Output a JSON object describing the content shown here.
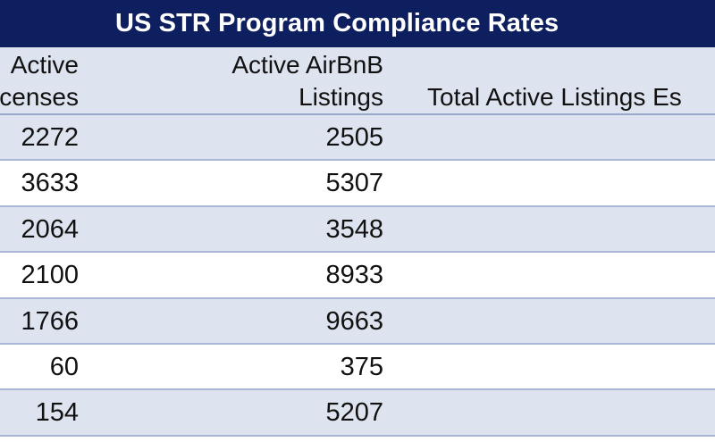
{
  "table": {
    "title": "US STR Program Compliance Rates",
    "headers": {
      "col1_line1": "Active",
      "col1_line2": "censes",
      "col2_line1": "Active AirBnB",
      "col2_line2": "Listings",
      "col3_line1": "Total Active Listings Es"
    },
    "rows": [
      {
        "active_licenses": "2272",
        "active_airbnb_listings": "2505"
      },
      {
        "active_licenses": "3633",
        "active_airbnb_listings": "5307"
      },
      {
        "active_licenses": "2064",
        "active_airbnb_listings": "3548"
      },
      {
        "active_licenses": "2100",
        "active_airbnb_listings": "8933"
      },
      {
        "active_licenses": "1766",
        "active_airbnb_listings": "9663"
      },
      {
        "active_licenses": "60",
        "active_airbnb_listings": "375"
      },
      {
        "active_licenses": "154",
        "active_airbnb_listings": "5207"
      }
    ]
  },
  "colors": {
    "title_background": "#0e1f5f",
    "shaded_row": "#dde3ef",
    "plain_row": "#ffffff",
    "rule": "#a9b6d6"
  }
}
